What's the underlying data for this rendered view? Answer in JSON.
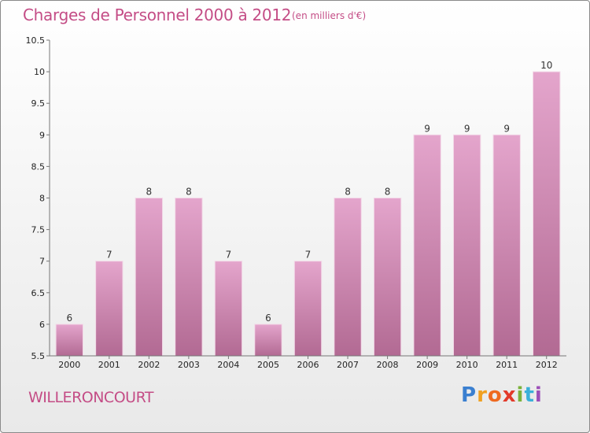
{
  "header": {
    "title": "Charges de Personnel 2000 à 2012",
    "subtitle": "(en milliers d'€)"
  },
  "footer": {
    "commune": "WILLERONCOURT",
    "logo_text": "Proxiti"
  },
  "colors": {
    "bar_top": "#e4a5cc",
    "bar_bottom": "#b26a93",
    "text_accent": "#c44d86"
  },
  "chart_data": {
    "type": "bar",
    "title": "Charges de Personnel 2000 à 2012",
    "subtitle": "(en milliers d'€)",
    "xlabel": "",
    "ylabel": "",
    "categories": [
      "2000",
      "2001",
      "2002",
      "2003",
      "2004",
      "2005",
      "2006",
      "2007",
      "2008",
      "2009",
      "2010",
      "2011",
      "2012"
    ],
    "values": [
      6,
      7,
      8,
      8,
      7,
      6,
      7,
      8,
      8,
      9,
      9,
      9,
      10
    ],
    "data_labels": [
      "6",
      "7",
      "8",
      "8",
      "7",
      "6",
      "7",
      "8",
      "8",
      "9",
      "9",
      "9",
      "10"
    ],
    "ylim": [
      5.5,
      10.5
    ],
    "yticks": [
      "5.5",
      "6",
      "6.5",
      "7",
      "7.5",
      "8",
      "8.5",
      "9",
      "9.5",
      "10",
      "10.5"
    ],
    "grid": false,
    "legend": "none"
  }
}
